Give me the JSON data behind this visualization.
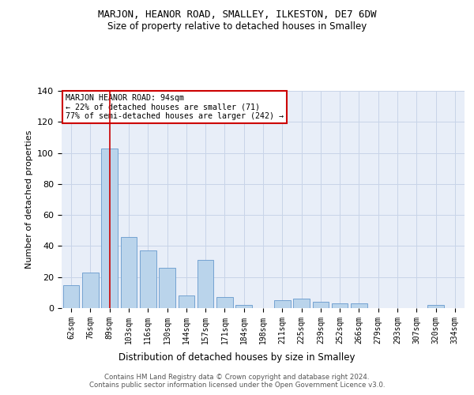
{
  "title": "MARJON, HEANOR ROAD, SMALLEY, ILKESTON, DE7 6DW",
  "subtitle": "Size of property relative to detached houses in Smalley",
  "xlabel": "Distribution of detached houses by size in Smalley",
  "ylabel": "Number of detached properties",
  "categories": [
    "62sqm",
    "76sqm",
    "89sqm",
    "103sqm",
    "116sqm",
    "130sqm",
    "144sqm",
    "157sqm",
    "171sqm",
    "184sqm",
    "198sqm",
    "211sqm",
    "225sqm",
    "239sqm",
    "252sqm",
    "266sqm",
    "279sqm",
    "293sqm",
    "307sqm",
    "320sqm",
    "334sqm"
  ],
  "values": [
    15,
    23,
    103,
    46,
    37,
    26,
    8,
    31,
    7,
    2,
    0,
    5,
    6,
    4,
    3,
    3,
    0,
    0,
    0,
    2,
    0
  ],
  "bar_color": "#bad4eb",
  "bar_edge_color": "#6699cc",
  "highlight_x": "89sqm",
  "highlight_line_color": "#cc0000",
  "annotation_text": "MARJON HEANOR ROAD: 94sqm\n← 22% of detached houses are smaller (71)\n77% of semi-detached houses are larger (242) →",
  "annotation_box_color": "#ffffff",
  "annotation_box_edge_color": "#cc0000",
  "grid_color": "#c8d4e8",
  "background_color": "#e8eef8",
  "footer_text": "Contains HM Land Registry data © Crown copyright and database right 2024.\nContains public sector information licensed under the Open Government Licence v3.0.",
  "ylim": [
    0,
    140
  ],
  "yticks": [
    0,
    20,
    40,
    60,
    80,
    100,
    120,
    140
  ]
}
